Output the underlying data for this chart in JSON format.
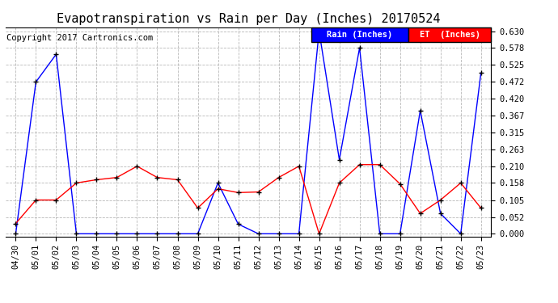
{
  "title": "Evapotranspiration vs Rain per Day (Inches) 20170524",
  "copyright": "Copyright 2017 Cartronics.com",
  "x_labels": [
    "04/30",
    "05/01",
    "05/02",
    "05/03",
    "05/04",
    "05/05",
    "05/06",
    "05/07",
    "05/08",
    "05/09",
    "05/10",
    "05/11",
    "05/12",
    "05/13",
    "05/14",
    "05/15",
    "05/16",
    "05/17",
    "05/18",
    "05/19",
    "05/20",
    "05/21",
    "05/22",
    "05/23"
  ],
  "rain_values": [
    0.0,
    0.472,
    0.558,
    0.0,
    0.0,
    0.0,
    0.0,
    0.0,
    0.0,
    0.0,
    0.158,
    0.03,
    0.0,
    0.0,
    0.0,
    0.63,
    0.23,
    0.578,
    0.0,
    0.0,
    0.383,
    0.063,
    0.0,
    0.5
  ],
  "et_values": [
    0.032,
    0.105,
    0.105,
    0.158,
    0.168,
    0.175,
    0.21,
    0.175,
    0.168,
    0.08,
    0.14,
    0.128,
    0.13,
    0.175,
    0.21,
    0.0,
    0.158,
    0.215,
    0.215,
    0.155,
    0.063,
    0.105,
    0.158,
    0.08
  ],
  "rain_color": "#0000ff",
  "et_color": "#ff0000",
  "background_color": "#ffffff",
  "grid_color": "#b0b0b0",
  "ylim": [
    -0.008,
    0.642
  ],
  "yticks": [
    0.0,
    0.052,
    0.105,
    0.158,
    0.21,
    0.263,
    0.315,
    0.367,
    0.42,
    0.472,
    0.525,
    0.578,
    0.63
  ],
  "title_fontsize": 11,
  "copyright_fontsize": 7.5,
  "tick_fontsize": 7.5,
  "legend_rain_label": "Rain (Inches)",
  "legend_et_label": "ET  (Inches)"
}
